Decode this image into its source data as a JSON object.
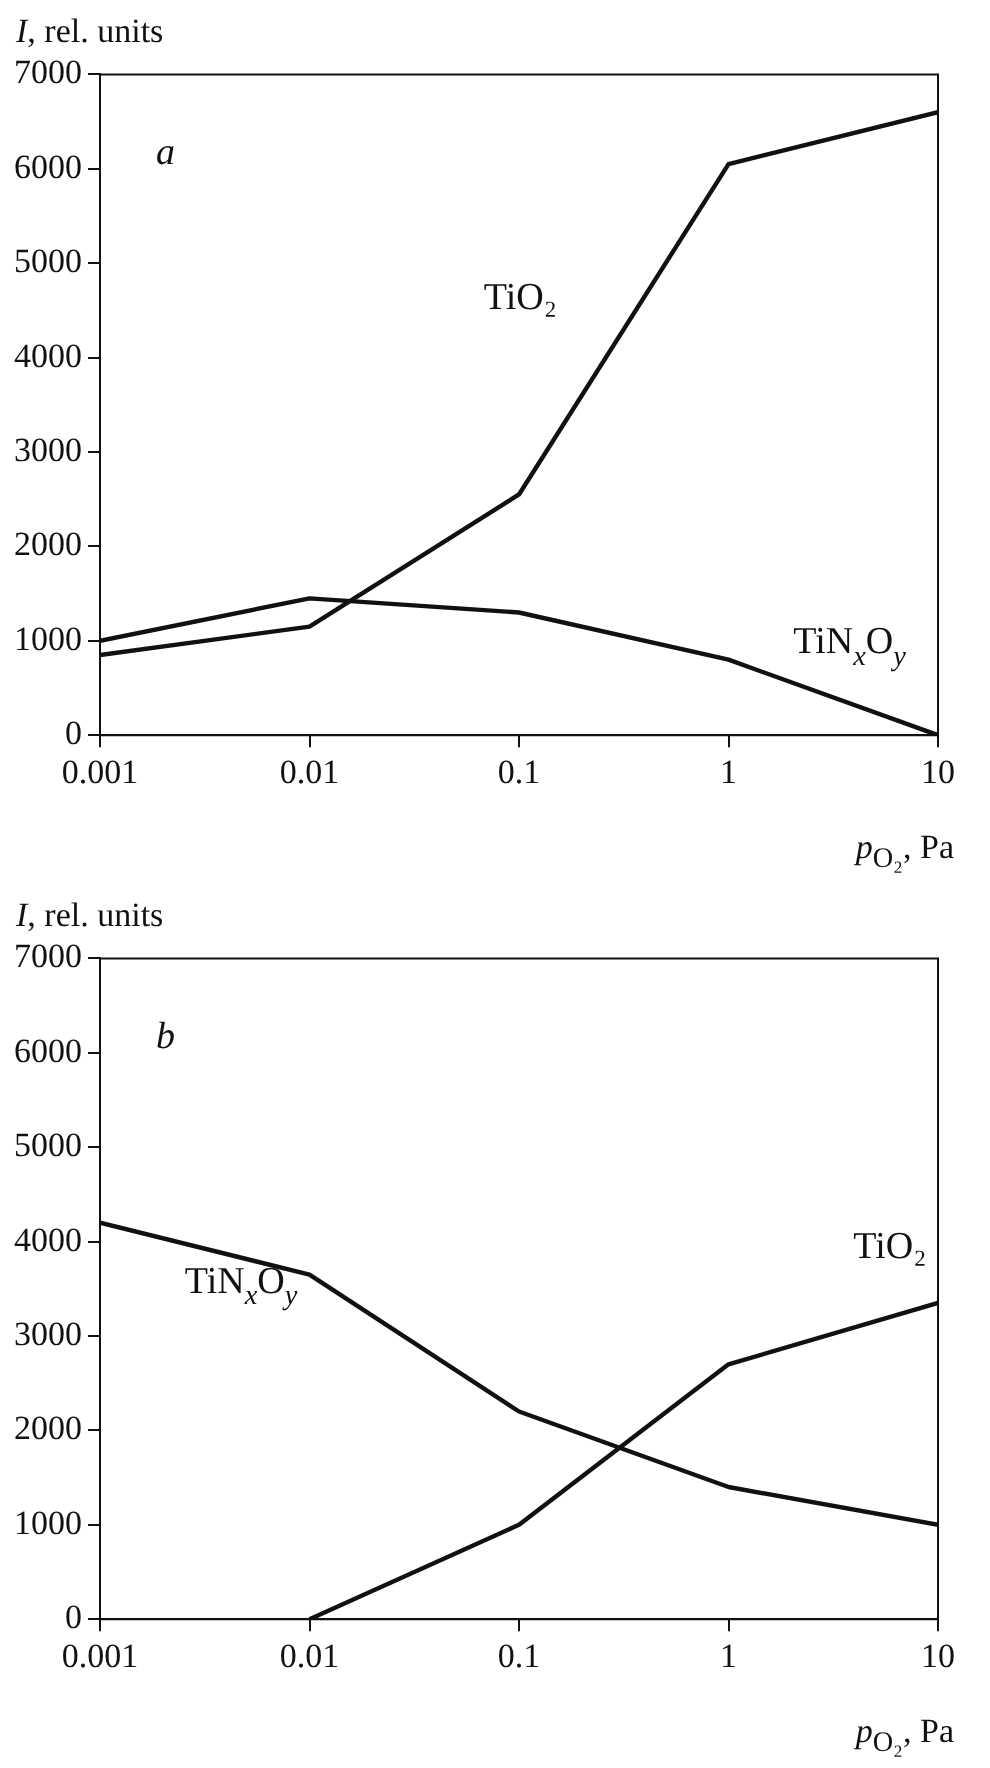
{
  "chart_data": [
    {
      "type": "line",
      "ylabel": "I, rel. units",
      "xlabel": "p$_{O₂}$, Pa",
      "annotations": [
        "a"
      ],
      "log": "x",
      "grid": false,
      "legend": false,
      "marker": "none",
      "line_style": "solid",
      "xlim": [
        0.001,
        10
      ],
      "xticks": [
        0.001,
        0.01,
        0.1,
        1,
        10
      ],
      "ylim": [
        0,
        7000
      ],
      "yticks": [
        0,
        1000,
        2000,
        3000,
        4000,
        5000,
        6000,
        7000
      ],
      "series": [
        {
          "name": "TiO₂",
          "color": "#111111",
          "x": [
            0.001,
            0.01,
            0.1,
            1,
            10
          ],
          "values": [
            850,
            1150,
            2550,
            6050,
            6600
          ]
        },
        {
          "name": "TiN$_{x}$O$_{y}$",
          "color": "#111111",
          "x": [
            0.001,
            0.01,
            0.1,
            1,
            10
          ],
          "values": [
            1000,
            1450,
            1300,
            800,
            0
          ]
        }
      ]
    },
    {
      "type": "line",
      "ylabel": "I, rel. units",
      "xlabel": "p$_{O₂}$, Pa",
      "annotations": [
        "b"
      ],
      "log": "x",
      "grid": false,
      "legend": false,
      "marker": "none",
      "line_style": "solid",
      "xlim": [
        0.001,
        10
      ],
      "xticks": [
        0.001,
        0.01,
        0.1,
        1,
        10
      ],
      "ylim": [
        0,
        7000
      ],
      "yticks": [
        0,
        1000,
        2000,
        3000,
        4000,
        5000,
        6000,
        7000
      ],
      "series": [
        {
          "name": "TiN$_{x}$O$_{y}$",
          "color": "#111111",
          "x": [
            0.001,
            0.01,
            0.1,
            1,
            10
          ],
          "values": [
            4200,
            3650,
            2200,
            1400,
            1000
          ]
        },
        {
          "name": "TiO₂",
          "color": "#111111",
          "x": [
            0.01,
            0.1,
            1,
            10
          ],
          "values": [
            0,
            1000,
            2700,
            3350
          ]
        }
      ]
    }
  ]
}
